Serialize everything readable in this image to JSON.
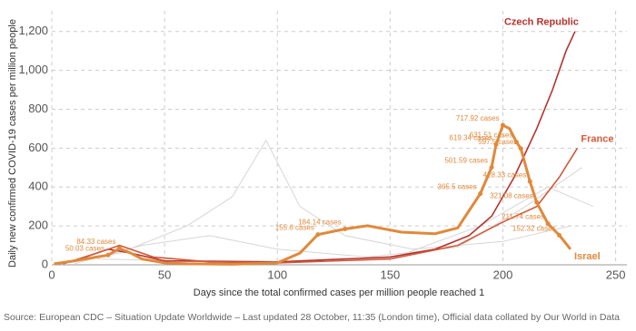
{
  "chart_data": {
    "type": "line",
    "ylabel": "Daily new confirmed COVID-19 cases per million people",
    "xlabel": "Days since the total confirmed cases per million people reached 1",
    "source": "Source: European CDC – Situation Update Worldwide – Last updated 28 October, 11:35 (London time), Official data collated by Our World in Data",
    "xlim": [
      0,
      255
    ],
    "ylim": [
      0,
      1250
    ],
    "xticks": [
      0,
      50,
      100,
      150,
      200,
      250
    ],
    "yticks": [
      0,
      200,
      400,
      600,
      800,
      {
        "value": 1000,
        "label": "1,000"
      },
      {
        "value": 1200,
        "label": "1,200"
      }
    ],
    "grid": true,
    "series": [
      {
        "color": "#d6d6d6",
        "x": [
          5,
          30,
          60,
          80,
          95,
          110,
          130,
          160,
          200,
          230
        ],
        "values": [
          10,
          60,
          200,
          350,
          640,
          300,
          150,
          80,
          120,
          200
        ]
      },
      {
        "color": "#d6d6d6",
        "x": [
          10,
          40,
          70,
          100,
          140,
          180,
          210,
          235
        ],
        "values": [
          5,
          100,
          150,
          80,
          40,
          90,
          300,
          500
        ]
      },
      {
        "color": "#d6d6d6",
        "x": [
          20,
          60,
          100,
          150,
          190,
          220,
          240
        ],
        "values": [
          30,
          20,
          10,
          30,
          200,
          400,
          300
        ]
      },
      {
        "name": "Czech Republic",
        "color": "#b5332e",
        "x": [
          5,
          15,
          25,
          35,
          50,
          100,
          150,
          170,
          185,
          195,
          205,
          215,
          222,
          228,
          232
        ],
        "values": [
          5,
          40,
          80,
          60,
          20,
          15,
          40,
          80,
          150,
          250,
          450,
          700,
          900,
          1100,
          1200
        ]
      },
      {
        "name": "France",
        "color": "#d15a3a",
        "x": [
          5,
          20,
          30,
          45,
          70,
          100,
          150,
          180,
          200,
          215,
          225,
          233
        ],
        "values": [
          5,
          60,
          100,
          40,
          15,
          10,
          30,
          100,
          220,
          300,
          450,
          600
        ]
      },
      {
        "name": "Israel",
        "color": "#e0893b",
        "x": [
          1,
          10,
          20,
          25,
          30,
          35,
          40,
          50,
          60,
          80,
          100,
          110,
          118,
          130,
          140,
          155,
          170,
          180,
          190,
          195,
          197,
          200,
          203,
          206,
          208,
          212,
          215,
          220,
          225,
          230
        ],
        "values": [
          5,
          20,
          40,
          50.03,
          84.33,
          60,
          30,
          10,
          5,
          3,
          10,
          60,
          155.6,
          184.14,
          201,
          168,
          160,
          190,
          365.5,
          501.59,
          619.34,
          717.92,
          700,
          631.51,
          597.5,
          428.33,
          321.08,
          211.74,
          152.32,
          80
        ],
        "value_labels": [
          null,
          null,
          null,
          "50.03 cases",
          "84.33 cases",
          null,
          null,
          null,
          null,
          null,
          null,
          null,
          "155.6 cases",
          "184.14 cases",
          null,
          null,
          null,
          null,
          "365.5 cases",
          "501.59 cases",
          "619.34 cases",
          "717.92 cases",
          null,
          "631.51 cases",
          "597.5 cases",
          "428.33 cases",
          "321.08 cases",
          "211.74 cases",
          "152.32 cases",
          null
        ]
      }
    ]
  }
}
